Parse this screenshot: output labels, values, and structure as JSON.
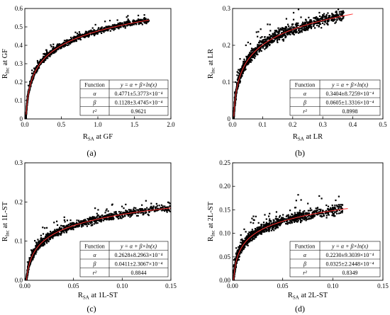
{
  "chart_data": [
    {
      "type": "scatter",
      "caption": "(a)",
      "xlabel": {
        "main": "R",
        "sub": "SA",
        "rest": " at GF"
      },
      "ylabel": {
        "main": "R",
        "sub": "Inc",
        "rest": " at GF"
      },
      "xlim": [
        0,
        2.0
      ],
      "ylim": [
        0,
        0.6
      ],
      "xticks": [
        "0.0",
        "0.5",
        "1.0",
        "1.5",
        "2.0"
      ],
      "yticks": [
        "0",
        "0.1",
        "0.2",
        "0.3",
        "0.4",
        "0.5",
        "0.6"
      ],
      "xtick_values": [
        0,
        0.5,
        1.0,
        1.5,
        2.0
      ],
      "ytick_values": [
        0,
        0.1,
        0.2,
        0.3,
        0.4,
        0.5,
        0.6
      ],
      "fit": {
        "model": "y = α + β×ln(x)",
        "alpha": 0.4771,
        "beta": 0.1128,
        "x_range": [
          0.018,
          1.7
        ]
      },
      "scatter_extent": {
        "x_range": [
          0.008,
          1.7
        ],
        "noise": 0.022
      },
      "point_color": "#000000",
      "fit_color": "#ff3030",
      "table": {
        "header": [
          "Function",
          "y = α + β×ln(x)"
        ],
        "rows": [
          [
            "α",
            "0.4771±5.3773×10⁻⁴"
          ],
          [
            "β",
            "0.1128±3.4745×10⁻⁴"
          ],
          [
            "r²",
            "0.9621"
          ]
        ]
      }
    },
    {
      "type": "scatter",
      "caption": "(b)",
      "xlabel": {
        "main": "R",
        "sub": "SA",
        "rest": " at LR"
      },
      "ylabel": {
        "main": "R",
        "sub": "Inc",
        "rest": " at LR"
      },
      "xlim": [
        0,
        0.5
      ],
      "ylim": [
        0,
        0.3
      ],
      "xticks": [
        "0.0",
        "0.1",
        "0.2",
        "0.3",
        "0.4",
        "0.5"
      ],
      "yticks": [
        "0",
        "0.1",
        "0.2",
        "0.3"
      ],
      "xtick_values": [
        0,
        0.1,
        0.2,
        0.3,
        0.4,
        0.5
      ],
      "ytick_values": [
        0,
        0.1,
        0.2,
        0.3
      ],
      "fit": {
        "model": "y = α + β×ln(x)",
        "alpha": 0.3404,
        "beta": 0.0605,
        "x_range": [
          0.004,
          0.4
        ]
      },
      "scatter_extent": {
        "x_range": [
          0.002,
          0.37
        ],
        "noise": 0.022
      },
      "point_color": "#000000",
      "fit_color": "#ff3030",
      "table": {
        "header": [
          "Function",
          "y = α + β×ln(x)"
        ],
        "rows": [
          [
            "α",
            "0.3404±8.7259×10⁻⁴"
          ],
          [
            "β",
            "0.0605±1.3316×10⁻⁴"
          ],
          [
            "r²",
            "0.8998"
          ]
        ]
      }
    },
    {
      "type": "scatter",
      "caption": "(c)",
      "xlabel": {
        "main": "R",
        "sub": "SA",
        "rest": " at 1L-ST"
      },
      "ylabel": {
        "main": "R",
        "sub": "Inc",
        "rest": " at 1L-ST"
      },
      "xlim": [
        0,
        0.15
      ],
      "ylim": [
        0,
        0.3
      ],
      "xticks": [
        "0.00",
        "0.05",
        "0.10",
        "0.15"
      ],
      "yticks": [
        "0.0",
        "0.1",
        "0.2",
        "0.3"
      ],
      "xtick_values": [
        0,
        0.05,
        0.1,
        0.15
      ],
      "ytick_values": [
        0,
        0.1,
        0.2,
        0.3
      ],
      "fit": {
        "model": "y = α + β×ln(x)",
        "alpha": 0.2628,
        "beta": 0.0411,
        "x_range": [
          0.0008,
          0.15
        ]
      },
      "scatter_extent": {
        "x_range": [
          0.0005,
          0.15
        ],
        "noise": 0.014
      },
      "point_color": "#000000",
      "fit_color": "#ff3030",
      "table": {
        "header": [
          "Function",
          "y = α + β×ln(x)"
        ],
        "rows": [
          [
            "α",
            "0.2628±8.2963×10⁻⁴"
          ],
          [
            "β",
            "0.0411±2.3067×10⁻⁴"
          ],
          [
            "r²",
            "0.8844"
          ]
        ]
      }
    },
    {
      "type": "scatter",
      "caption": "(d)",
      "xlabel": {
        "main": "R",
        "sub": "SA",
        "rest": " at 2L-ST"
      },
      "ylabel": {
        "main": "R",
        "sub": "Inc",
        "rest": " at 2L-ST"
      },
      "xlim": [
        0,
        0.15
      ],
      "ylim": [
        0,
        0.25
      ],
      "xticks": [
        "0.00",
        "0.05",
        "0.10",
        "0.15"
      ],
      "yticks": [
        "0.00",
        "0.05",
        "0.10",
        "0.15",
        "0.20",
        "0.25"
      ],
      "xtick_values": [
        0,
        0.05,
        0.1,
        0.15
      ],
      "ytick_values": [
        0,
        0.05,
        0.1,
        0.15,
        0.2,
        0.25
      ],
      "fit": {
        "model": "y = α + β×ln(x)",
        "alpha": 0.223,
        "beta": 0.0325,
        "x_range": [
          0.0007,
          0.115
        ]
      },
      "scatter_extent": {
        "x_range": [
          0.0005,
          0.11
        ],
        "noise": 0.016
      },
      "point_color": "#000000",
      "fit_color": "#ff3030",
      "table": {
        "header": [
          "Function",
          "y = α + β×ln(x)"
        ],
        "rows": [
          [
            "α",
            "0.2230±9.3039×10⁻⁴"
          ],
          [
            "β",
            "0.0325±2.2448×10⁻⁴"
          ],
          [
            "r²",
            "0.8349"
          ]
        ]
      }
    }
  ]
}
